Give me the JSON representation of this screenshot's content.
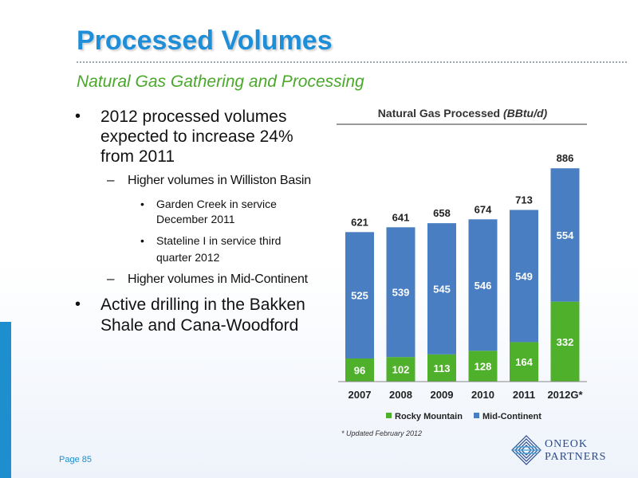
{
  "slide": {
    "title": "Processed Volumes",
    "subtitle": "Natural Gas Gathering and Processing",
    "page_label": "Page 85",
    "footnote": "* Updated February 2012",
    "logo": {
      "line1": "ONEOK",
      "line2": "PARTNERS"
    }
  },
  "bullets": {
    "b1_lines": [
      "2012 processed volumes",
      "expected to increase 24%",
      "from 2011"
    ],
    "b1_1": "Higher volumes in Williston Basin",
    "b1_1_1_lines": [
      "Garden Creek in service",
      "December 2011"
    ],
    "b1_1_2_lines": [
      "Stateline I in service third",
      "quarter 2012"
    ],
    "b1_2": "Higher volumes in Mid-Continent",
    "b2_lines": [
      "Active drilling in the Bakken",
      "Shale and Cana-Woodford"
    ]
  },
  "colors": {
    "title": "#1f8ed8",
    "subtitle": "#4aa82a",
    "rocky_mountain": "#4fb02c",
    "mid_continent": "#4a7ec2",
    "accent_bar": "#1e8fce"
  },
  "chart_data": {
    "type": "bar",
    "stacked": true,
    "title": "Natural Gas Processed",
    "title_unit": "(BBtu/d)",
    "categories": [
      "2007",
      "2008",
      "2009",
      "2010",
      "2011",
      "2012G*"
    ],
    "series": [
      {
        "name": "Rocky Mountain",
        "color": "#4fb02c",
        "values": [
          96,
          102,
          113,
          128,
          164,
          332
        ]
      },
      {
        "name": "Mid-Continent",
        "color": "#4a7ec2",
        "values": [
          525,
          539,
          545,
          546,
          549,
          554
        ]
      }
    ],
    "totals": [
      621,
      641,
      658,
      674,
      713,
      886
    ],
    "ylim": [
      0,
      900
    ],
    "legend_position": "bottom",
    "grid": false
  }
}
